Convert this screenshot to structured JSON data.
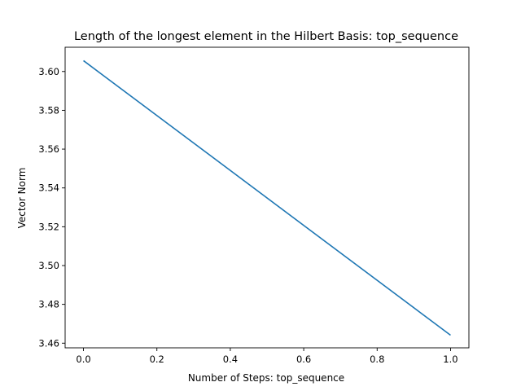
{
  "chart_data": {
    "type": "line",
    "title": "Length of the longest element in the Hilbert Basis: top_sequence",
    "xlabel": "Number of Steps: top_sequence",
    "ylabel": "Vector Norm",
    "xlim": [
      -0.05,
      1.05
    ],
    "ylim": [
      3.4576,
      3.6125
    ],
    "x_ticks": [
      0.0,
      0.2,
      0.4,
      0.6,
      0.8,
      1.0
    ],
    "x_tick_labels": [
      "0.0",
      "0.2",
      "0.4",
      "0.6",
      "0.8",
      "1.0"
    ],
    "y_ticks": [
      3.46,
      3.48,
      3.5,
      3.52,
      3.54,
      3.56,
      3.58,
      3.6
    ],
    "y_tick_labels": [
      "3.46",
      "3.48",
      "3.50",
      "3.52",
      "3.54",
      "3.56",
      "3.58",
      "3.60"
    ],
    "grid": false,
    "series": [
      {
        "color": "#1f77b4",
        "x": [
          0.0,
          1.0
        ],
        "y": [
          3.6056,
          3.4641
        ]
      }
    ]
  }
}
